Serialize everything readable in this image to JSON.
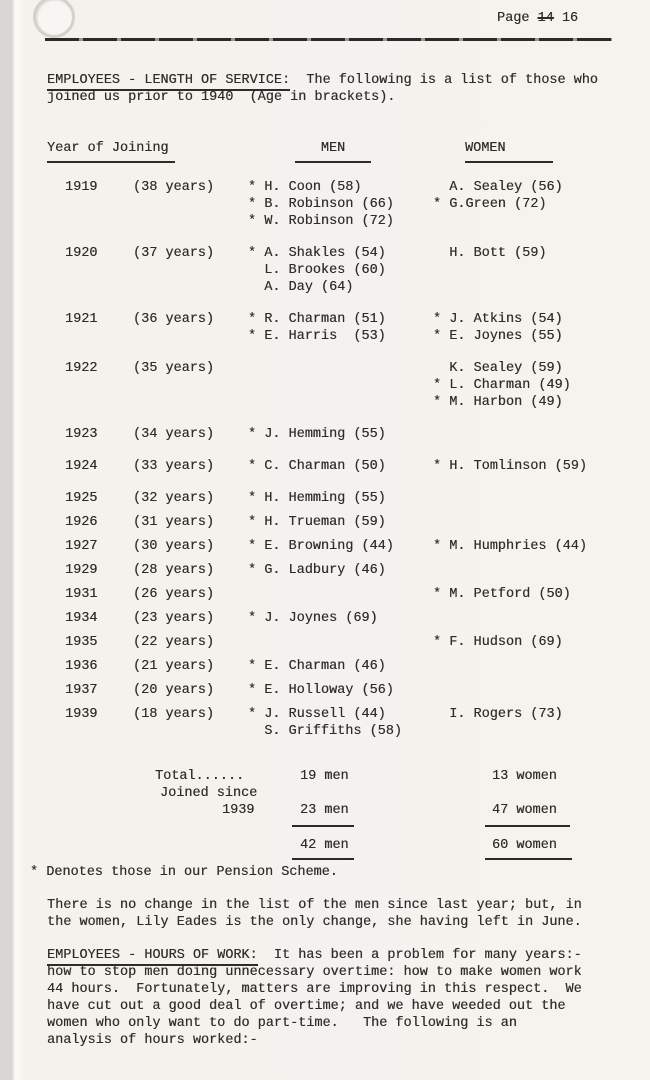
{
  "page": {
    "label": "Page",
    "struck_number": "14",
    "number": "16"
  },
  "section_service": {
    "heading": "EMPLOYEES - LENGTH OF SERVICE:",
    "intro_rest": "  The following is a list of those who",
    "intro_line2": "joined us prior to 1940  (Age in brackets).",
    "columns": {
      "year": "Year of Joining",
      "men": "MEN",
      "women": "WOMEN"
    },
    "rows": [
      {
        "year": "1919",
        "age": "(38 years)",
        "men": [
          "* H. Coon (58)",
          "* B. Robinson (66)",
          "* W. Robinson (72)"
        ],
        "women": [
          "A. Sealey (56)",
          "* G.Green (72)"
        ]
      },
      {
        "year": "1920",
        "age": "(37 years)",
        "men": [
          "* A. Shakles (54)",
          "L. Brookes (60)",
          "A. Day (64)"
        ],
        "women": [
          "H. Bott (59)"
        ]
      },
      {
        "year": "1921",
        "age": "(36 years)",
        "men": [
          "* R. Charman (51)",
          "* E. Harris  (53)"
        ],
        "women": [
          "* J. Atkins (54)",
          "* E. Joynes (55)"
        ]
      },
      {
        "year": "1922",
        "age": "(35 years)",
        "men": [],
        "women": [
          "K. Sealey (59)",
          "* L. Charman (49)",
          "* M. Harbon (49)"
        ]
      },
      {
        "year": "1923",
        "age": "(34 years)",
        "men": [
          "* J. Hemming (55)"
        ],
        "women": []
      },
      {
        "year": "1924",
        "age": "(33 years)",
        "men": [
          "* C. Charman (50)"
        ],
        "women": [
          "* H. Tomlinson (59)"
        ]
      },
      {
        "year": "1925",
        "age": "(32 years)",
        "men": [
          "* H. Hemming (55)"
        ],
        "women": []
      },
      {
        "year": "1926",
        "age": "(31 years)",
        "men": [
          "* H. Trueman (59)"
        ],
        "women": []
      },
      {
        "year": "1927",
        "age": "(30 years)",
        "men": [
          "* E. Browning (44)"
        ],
        "women": [
          "* M. Humphries (44)"
        ]
      },
      {
        "year": "1929",
        "age": "(28 years)",
        "men": [
          "* G. Ladbury (46)"
        ],
        "women": []
      },
      {
        "year": "1931",
        "age": "(26 years)",
        "men": [],
        "women": [
          "* M. Petford (50)"
        ]
      },
      {
        "year": "1934",
        "age": "(23 years)",
        "men": [
          "* J. Joynes (69)"
        ],
        "women": []
      },
      {
        "year": "1935",
        "age": "(22 years)",
        "men": [],
        "women": [
          "* F. Hudson (69)"
        ]
      },
      {
        "year": "1936",
        "age": "(21 years)",
        "men": [
          "* E. Charman (46)"
        ],
        "women": []
      },
      {
        "year": "1937",
        "age": "(20 years)",
        "men": [
          "* E. Holloway (56)"
        ],
        "women": []
      },
      {
        "year": "1939",
        "age": "(18 years)",
        "men": [
          "* J. Russell (44)",
          "S. Griffiths (58)"
        ],
        "women": [
          "I. Rogers (73)"
        ]
      }
    ],
    "totals": {
      "total_label": "Total......",
      "joined_label": "Joined since",
      "joined_year": "1939",
      "men_total": "19 men",
      "women_total": "13 women",
      "men_since": "23 men",
      "women_since": "47 women",
      "men_grand": "42 men",
      "women_grand": "60 women"
    },
    "footnote": "* Denotes those in our Pension Scheme."
  },
  "note_lines": [
    "There is no change in the list of the men since last year; but, in",
    "the women, Lily Eades is the only change, she having left in June."
  ],
  "section_hours": {
    "heading": "EMPLOYEES - HOURS OF WORK:",
    "first_line_rest": "  It has been a problem for many years:-",
    "lines": [
      "how to stop men doing unnecessary overtime: how to make women work",
      "44 hours.  Fortunately, matters are improving in this respect.  We",
      "have cut out a good deal of overtime; and we have weeded out the",
      "women who only want to do part-time.   The following is an",
      "analysis of hours worked:-"
    ]
  }
}
